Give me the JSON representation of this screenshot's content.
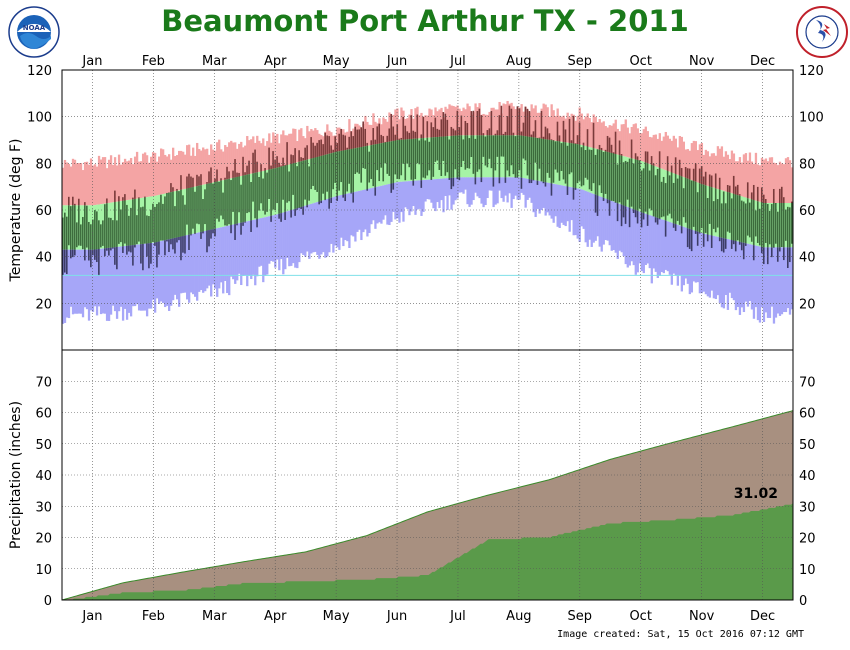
{
  "title": "Beaumont Port Arthur TX - 2011",
  "footer": "Image created: Sat, 15 Oct 2016 07:12 GMT",
  "logos": {
    "left": "NOAA",
    "left_ring": "NATIONAL OCEANIC AND ATMOSPHERIC ADMINISTRATION",
    "right_ring": "NATIONAL WEATHER SERVICE"
  },
  "colors": {
    "record_band": "#f4a4a4",
    "normal_band": "#a6f4a6",
    "low_band": "#a6a6f8",
    "actual_high": "#7a3a3a",
    "actual_mid": "#3c6a3c",
    "actual_low": "#3c3c66",
    "precip_normal": "#a89080",
    "precip_actual": "#5a9a4a",
    "title": "#1a7a1a"
  },
  "chart_data": [
    {
      "type": "area",
      "name": "temperature",
      "ylabel": "Temperature (deg F)",
      "ylim": [
        0,
        120
      ],
      "yticks": [
        20,
        40,
        60,
        80,
        100,
        120
      ],
      "x_tick_labels": [
        "Jan",
        "Feb",
        "Mar",
        "Apr",
        "May",
        "Jun",
        "Jul",
        "Aug",
        "Sep",
        "Oct",
        "Nov",
        "Dec"
      ],
      "grid": true,
      "freezing_line": 32,
      "normal_high_monthly": [
        62,
        66,
        72,
        78,
        85,
        90,
        92,
        92,
        88,
        81,
        71,
        63
      ],
      "normal_low_monthly": [
        43,
        46,
        52,
        58,
        66,
        72,
        74,
        74,
        69,
        59,
        50,
        44
      ],
      "record_high_monthly": [
        80,
        83,
        87,
        91,
        95,
        101,
        103,
        104,
        101,
        94,
        86,
        81
      ],
      "record_low_monthly": [
        15,
        18,
        25,
        35,
        45,
        57,
        65,
        64,
        50,
        34,
        25,
        15
      ],
      "daily_high_monthly": [
        60,
        64,
        73,
        82,
        88,
        95,
        97,
        98,
        93,
        82,
        72,
        64
      ],
      "daily_low_monthly": [
        38,
        41,
        50,
        60,
        68,
        75,
        76,
        76,
        68,
        55,
        48,
        42
      ]
    },
    {
      "type": "area",
      "name": "precipitation",
      "ylabel": "Precipitation (inches)",
      "ylim": [
        0,
        80
      ],
      "yticks": [
        0,
        10,
        20,
        30,
        40,
        50,
        60,
        70
      ],
      "x_tick_labels": [
        "Jan",
        "Feb",
        "Mar",
        "Apr",
        "May",
        "Jun",
        "Jul",
        "Aug",
        "Sep",
        "Oct",
        "Nov",
        "Dec"
      ],
      "grid": true,
      "annotation": "31.02",
      "normal_cumulative_month_end": [
        5.5,
        9.0,
        12.3,
        15.4,
        20.6,
        28.2,
        33.6,
        38.5,
        45.0,
        50.3,
        55.4,
        60.6
      ],
      "actual_cumulative_month_end": [
        2.6,
        3.4,
        5.6,
        6.2,
        6.8,
        8.2,
        19.5,
        20.4,
        24.8,
        25.9,
        27.4,
        31.02
      ]
    }
  ]
}
